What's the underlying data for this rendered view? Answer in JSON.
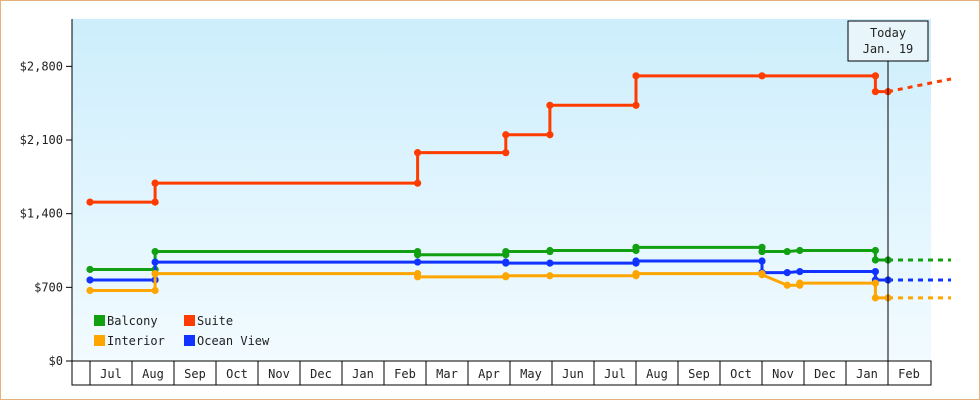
{
  "chart_data": {
    "type": "line",
    "style": "step",
    "y_ticks": [
      "$0",
      "$700",
      "$1,400",
      "$2,100",
      "$2,800"
    ],
    "y_tick_values": [
      0,
      700,
      1400,
      2100,
      2800
    ],
    "ylim": [
      0,
      3250
    ],
    "months": [
      "",
      "Jul",
      "Aug",
      "Sep",
      "Oct",
      "Nov",
      "Dec",
      "Jan",
      "Feb",
      "Mar",
      "Apr",
      "May",
      "Jun",
      "Jul",
      "Aug",
      "Sep",
      "Oct",
      "Nov",
      "Dec",
      "Jan",
      "Feb"
    ],
    "x_range": [
      0,
      20.5
    ],
    "today": {
      "line1": "Today",
      "line2": "Jan. 19",
      "x": 19.0
    },
    "background": {
      "top": "#cdeefc",
      "bottom": "#f2fbff"
    },
    "legend_position": "bottom-left",
    "series": [
      {
        "name": "Suite",
        "color": "#ff3c00",
        "points": [
          [
            0,
            1510
          ],
          [
            1.55,
            1510
          ],
          [
            1.55,
            1690
          ],
          [
            7.8,
            1690
          ],
          [
            7.8,
            1980
          ],
          [
            9.9,
            1980
          ],
          [
            9.9,
            2150
          ],
          [
            10.95,
            2150
          ],
          [
            10.95,
            2430
          ],
          [
            13.0,
            2430
          ],
          [
            13.0,
            2710
          ],
          [
            16.0,
            2710
          ],
          [
            18.7,
            2710
          ],
          [
            18.7,
            2560
          ],
          [
            19.0,
            2560
          ]
        ],
        "forecast": [
          [
            19.0,
            2560
          ],
          [
            20.5,
            2680
          ]
        ]
      },
      {
        "name": "Balcony",
        "color": "#11a011",
        "points": [
          [
            0,
            870
          ],
          [
            1.55,
            870
          ],
          [
            1.55,
            1040
          ],
          [
            7.8,
            1040
          ],
          [
            7.8,
            1010
          ],
          [
            9.9,
            1010
          ],
          [
            9.9,
            1040
          ],
          [
            10.95,
            1040
          ],
          [
            10.95,
            1050
          ],
          [
            13.0,
            1050
          ],
          [
            13.0,
            1080
          ],
          [
            16.0,
            1080
          ],
          [
            16.0,
            1040
          ],
          [
            16.6,
            1040
          ],
          [
            16.9,
            1050
          ],
          [
            18.7,
            1050
          ],
          [
            18.7,
            960
          ],
          [
            19.0,
            960
          ]
        ],
        "forecast": [
          [
            19.0,
            960
          ],
          [
            20.5,
            960
          ]
        ]
      },
      {
        "name": "Ocean View",
        "color": "#1133ff",
        "points": [
          [
            0,
            770
          ],
          [
            1.55,
            770
          ],
          [
            1.55,
            940
          ],
          [
            7.8,
            940
          ],
          [
            9.9,
            940
          ],
          [
            9.9,
            930
          ],
          [
            10.95,
            930
          ],
          [
            13.0,
            930
          ],
          [
            13.0,
            950
          ],
          [
            16.0,
            950
          ],
          [
            16.0,
            840
          ],
          [
            16.6,
            840
          ],
          [
            16.9,
            850
          ],
          [
            18.7,
            850
          ],
          [
            18.7,
            770
          ],
          [
            19.0,
            770
          ]
        ],
        "forecast": [
          [
            19.0,
            770
          ],
          [
            20.5,
            770
          ]
        ]
      },
      {
        "name": "Interior",
        "color": "#ffa500",
        "points": [
          [
            0,
            670
          ],
          [
            1.55,
            670
          ],
          [
            1.55,
            830
          ],
          [
            7.8,
            830
          ],
          [
            7.8,
            800
          ],
          [
            9.9,
            800
          ],
          [
            9.9,
            810
          ],
          [
            10.95,
            810
          ],
          [
            13.0,
            810
          ],
          [
            13.0,
            830
          ],
          [
            16.0,
            830
          ],
          [
            16.0,
            820
          ],
          [
            16.6,
            720
          ],
          [
            16.9,
            720
          ],
          [
            16.9,
            740
          ],
          [
            18.7,
            740
          ],
          [
            18.7,
            600
          ],
          [
            19.0,
            600
          ]
        ],
        "forecast": [
          [
            19.0,
            600
          ],
          [
            20.5,
            600
          ]
        ]
      }
    ],
    "legend": [
      {
        "name": "Balcony",
        "color": "#11a011"
      },
      {
        "name": "Suite",
        "color": "#ff3c00"
      },
      {
        "name": "Interior",
        "color": "#ffa500"
      },
      {
        "name": "Ocean View",
        "color": "#1133ff"
      }
    ]
  }
}
